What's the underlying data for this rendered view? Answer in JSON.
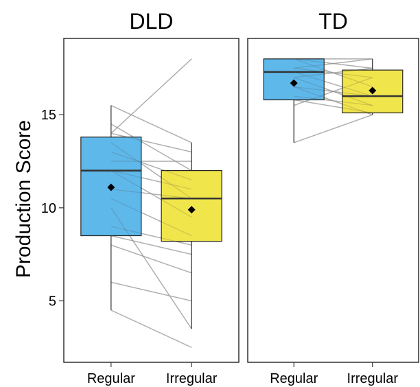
{
  "chart_data": {
    "type": "box",
    "ylabel": "Production Score",
    "ylim": [
      1.7,
      19.1
    ],
    "yticks": [
      5,
      10,
      15
    ],
    "categories": [
      "Regular",
      "Irregular"
    ],
    "colors": {
      "Regular": "#56B4E9",
      "Irregular": "#F0E442"
    },
    "panels": [
      {
        "title": "DLD",
        "boxes": [
          {
            "category": "Regular",
            "min": 4.5,
            "q1": 8.5,
            "median": 12.0,
            "q3": 13.8,
            "max": 15.5,
            "mean": 11.1
          },
          {
            "category": "Irregular",
            "min": 3.5,
            "q1": 8.2,
            "median": 10.5,
            "q3": 12.0,
            "max": 13.5,
            "mean": 9.9
          }
        ],
        "pairs": [
          [
            15.5,
            13.5
          ],
          [
            14.5,
            12.0
          ],
          [
            14.0,
            13.0
          ],
          [
            13.5,
            10.5
          ],
          [
            13.0,
            11.5
          ],
          [
            12.5,
            12.5
          ],
          [
            12.0,
            11.0
          ],
          [
            12.0,
            9.5
          ],
          [
            11.0,
            10.5
          ],
          [
            10.5,
            8.5
          ],
          [
            10.0,
            3.5
          ],
          [
            9.0,
            8.0
          ],
          [
            8.5,
            7.5
          ],
          [
            8.0,
            6.5
          ],
          [
            6.0,
            5.0
          ],
          [
            4.5,
            2.5
          ],
          [
            14.0,
            18.0
          ]
        ]
      },
      {
        "title": "TD",
        "boxes": [
          {
            "category": "Regular",
            "min": 13.5,
            "q1": 15.8,
            "median": 17.3,
            "q3": 18.0,
            "max": 18.0,
            "mean": 16.7
          },
          {
            "category": "Irregular",
            "min": 15.0,
            "q1": 15.1,
            "median": 16.0,
            "q3": 17.4,
            "max": 18.0,
            "mean": 16.3
          }
        ],
        "pairs": [
          [
            18.0,
            18.0
          ],
          [
            18.0,
            17.5
          ],
          [
            18.0,
            16.5
          ],
          [
            17.5,
            18.0
          ],
          [
            17.5,
            17.0
          ],
          [
            17.3,
            16.0
          ],
          [
            17.0,
            17.5
          ],
          [
            17.0,
            15.5
          ],
          [
            16.5,
            16.0
          ],
          [
            16.5,
            15.0
          ],
          [
            16.0,
            15.5
          ],
          [
            15.8,
            15.1
          ],
          [
            15.5,
            17.0
          ],
          [
            13.5,
            15.0
          ]
        ]
      }
    ]
  }
}
